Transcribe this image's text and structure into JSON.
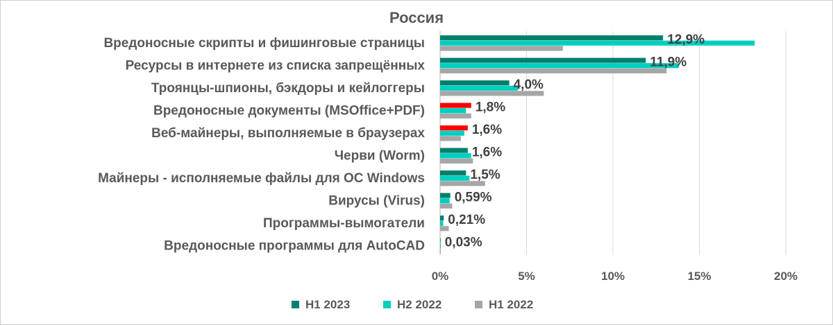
{
  "chart_data": {
    "type": "bar",
    "orientation": "horizontal",
    "title": "Россия",
    "categories": [
      "Вредоносные скрипты и фишинговые страницы",
      "Ресурсы в интернете из списка запрещённых",
      "Троянцы-шпионы, бэкдоры и кейлоггеры",
      "Вредоносные документы (MSOffice+PDF)",
      "Веб-майнеры, выполняемые в браузерах",
      "Черви (Worm)",
      "Майнеры - исполняемые файлы для ОС Windows",
      "Вирусы (Virus)",
      "Программы-вымогатели",
      "Вредоносные программы для AutoCAD"
    ],
    "series": [
      {
        "name": "H1 2023",
        "color": "#00806c",
        "values": [
          12.9,
          11.9,
          4.0,
          1.8,
          1.6,
          1.6,
          1.5,
          0.59,
          0.21,
          0.03
        ],
        "bar_colors": [
          "#00806c",
          "#00806c",
          "#00806c",
          "#ff0000",
          "#ff0000",
          "#00806c",
          "#00806c",
          "#00806c",
          "#00806c",
          "#00806c"
        ]
      },
      {
        "name": "H2 2022",
        "color": "#00cfc0",
        "values": [
          18.2,
          13.8,
          4.5,
          1.5,
          1.4,
          1.8,
          1.7,
          0.55,
          0.18,
          0.04
        ]
      },
      {
        "name": "H1 2022",
        "color": "#a6a6a6",
        "values": [
          7.1,
          13.1,
          6.0,
          1.8,
          1.2,
          1.9,
          2.6,
          0.7,
          0.5,
          0.04
        ]
      }
    ],
    "data_labels": [
      "12,9%",
      "11,9%",
      "4,0%",
      "1,8%",
      "1,6%",
      "1,6%",
      "1,5%",
      "0,59%",
      "0,21%",
      "0,03%"
    ],
    "xlim": [
      0,
      20
    ],
    "x_ticks": [
      0,
      5,
      10,
      15,
      20
    ],
    "x_tick_labels": [
      "0%",
      "5%",
      "10%",
      "15%",
      "20%"
    ],
    "grid": true,
    "legend_position": "bottom"
  }
}
